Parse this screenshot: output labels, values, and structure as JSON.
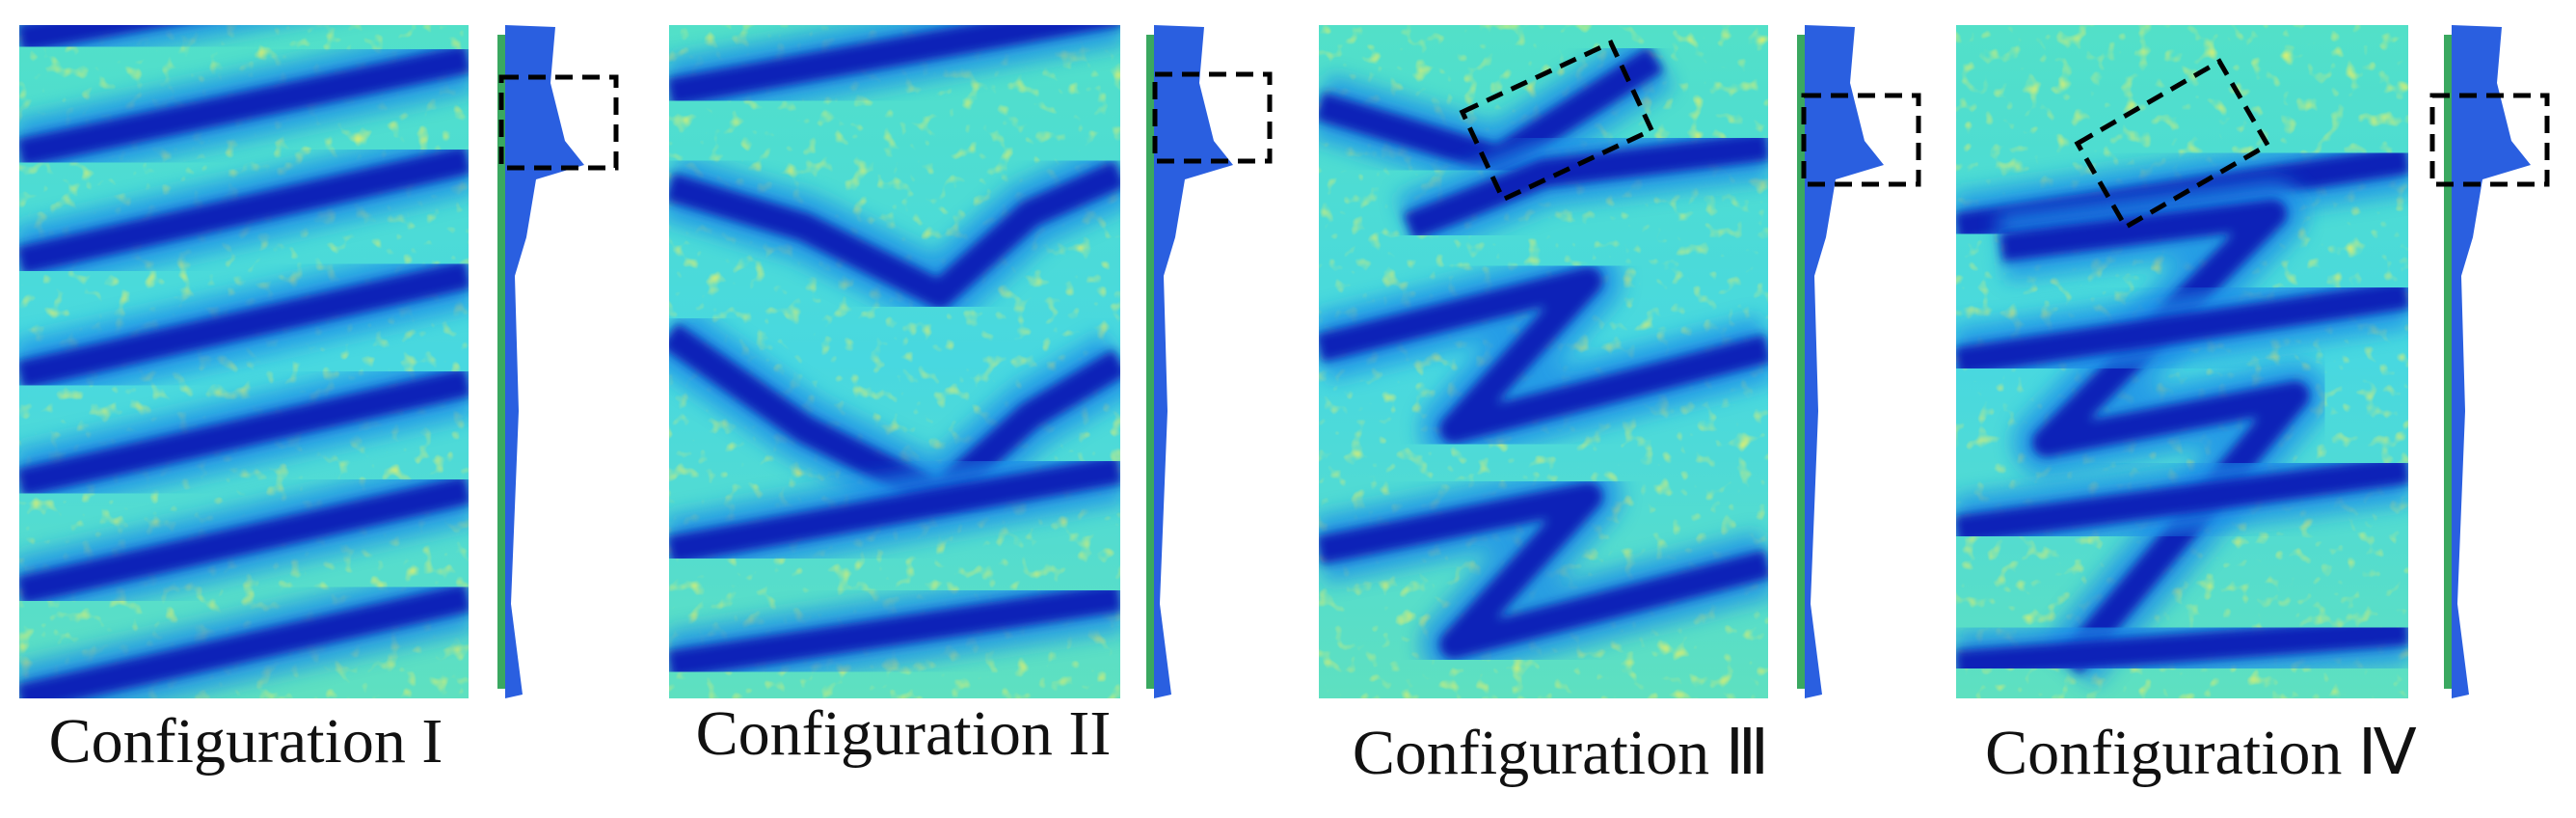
{
  "panels": [
    {
      "label": "Configuration I"
    },
    {
      "label": "Configuration II"
    },
    {
      "label": "Configuration Ⅲ"
    },
    {
      "label": "Configuration Ⅳ"
    }
  ]
}
